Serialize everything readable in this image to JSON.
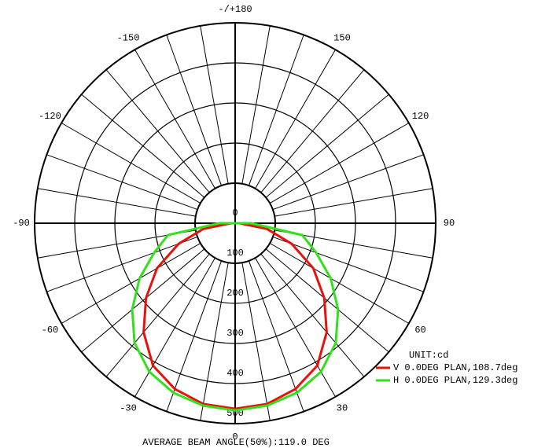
{
  "chart_data": {
    "type": "polar",
    "x": [
      -180,
      -170,
      -160,
      -150,
      -140,
      -130,
      -120,
      -110,
      -100,
      -90,
      -80,
      -70,
      -60,
      -50,
      -40,
      -30,
      -20,
      -10,
      0,
      10,
      20,
      30,
      40,
      50,
      60,
      70,
      80,
      90,
      100,
      110,
      120,
      130,
      140,
      150,
      160,
      170,
      180
    ],
    "series": [
      {
        "name": "V 0.0DEG PLAN,108.7deg",
        "color": "#e8120c",
        "values": [
          0,
          0,
          0,
          0,
          0,
          0,
          0,
          0,
          0,
          10,
          80,
          150,
          225,
          290,
          355,
          410,
          440,
          458,
          463,
          458,
          440,
          410,
          355,
          290,
          225,
          150,
          80,
          10,
          0,
          0,
          0,
          0,
          0,
          0,
          0,
          0,
          0
        ]
      },
      {
        "name": "H 0.0DEG PLAN,129.3deg",
        "color": "#33e01c",
        "values": [
          0,
          0,
          0,
          0,
          0,
          0,
          0,
          0,
          0,
          40,
          170,
          215,
          275,
          335,
          390,
          428,
          450,
          462,
          467,
          462,
          450,
          428,
          390,
          335,
          275,
          215,
          170,
          40,
          0,
          0,
          0,
          0,
          0,
          0,
          0,
          0,
          0
        ]
      }
    ],
    "rlim": [
      0,
      500
    ],
    "rticks": [
      0,
      100,
      200,
      300,
      400,
      500
    ],
    "thetaticks": [
      {
        "value": 180,
        "label": "-/+180"
      },
      -150,
      150,
      -120,
      120,
      -90,
      90,
      -60,
      60,
      -30,
      30,
      0
    ],
    "unit_label": "UNIT:cd",
    "footer": "AVERAGE BEAM ANGLE(50%):119.0 DEG"
  }
}
